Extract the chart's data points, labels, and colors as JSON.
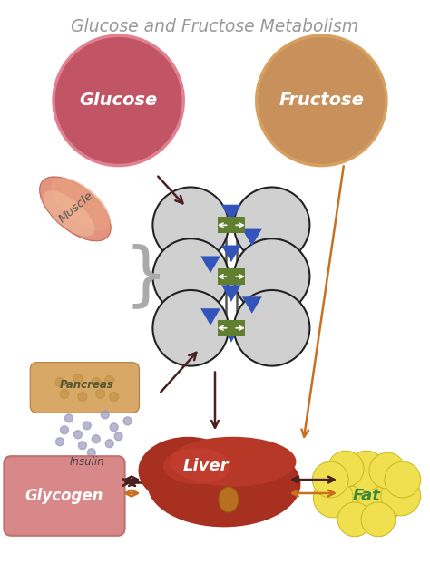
{
  "title": "Glucose and Fructose Metabolism",
  "title_color": "#999999",
  "bg_color": "#ffffff",
  "glucose_color": "#c25565",
  "glucose_fill": "#c25565",
  "glucose_border": "#c05060",
  "glucose_text": "Glucose",
  "fructose_color": "#c8905a",
  "fructose_fill": "#c8905a",
  "fructose_border": "#c07840",
  "fructose_text": "Fructose",
  "glycogen_color": "#d88888",
  "glycogen_text": "Glycogen",
  "fat_color": "#f0e050",
  "fat_border": "#c8b820",
  "fat_text": "Fat",
  "fat_text_color": "#3a8a3a",
  "liver_text": "Liver",
  "liver_text_color": "#ffffff",
  "muscle_text": "Muscle",
  "pancreas_text": "Pancreas",
  "insulin_text": "Insulin",
  "cell_color": "#d0d0d0",
  "cell_border": "#222222",
  "receptor_color": "#608030",
  "triangle_color": "#3355bb",
  "arrow_dark": "#4a2020",
  "arrow_orange": "#c87020",
  "liver_color": "#a03020",
  "liver_dark": "#7a1808"
}
